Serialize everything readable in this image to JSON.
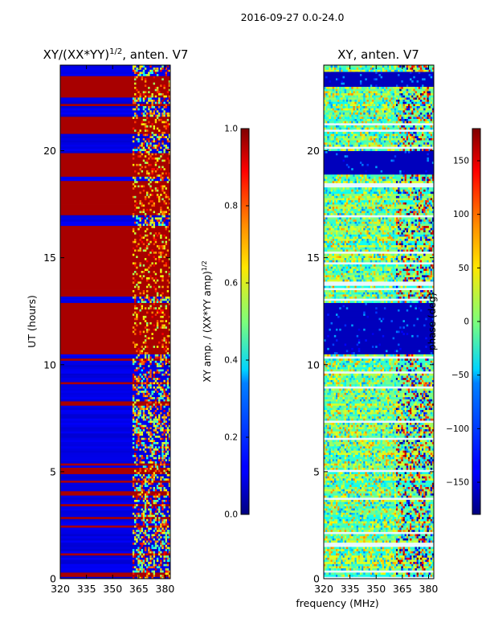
{
  "figure_title": "2016-09-27 0.0-24.0",
  "shared_xlabel": "frequency (MHz)",
  "chart_data": [
    {
      "type": "heatmap",
      "title_main": "XY/(XX*YY)",
      "title_sup": "1/2",
      "title_tail": ", anten. V7",
      "xlabel": "",
      "ylabel": "UT (hours)",
      "xlim": [
        320,
        383
      ],
      "ylim": [
        0,
        24
      ],
      "xticks": [
        320,
        335,
        350,
        365,
        380
      ],
      "yticks": [
        0,
        5,
        10,
        15,
        20
      ],
      "colorbar": {
        "label": "XY amp. / (XX*YY amp)",
        "label_sup": "1/2",
        "range": [
          0.0,
          1.0
        ],
        "ticks": [
          "0.0",
          "0.2",
          "0.4",
          "0.6",
          "0.8",
          "1.0"
        ],
        "colormap": "jet"
      },
      "saturated_bands_hours": [
        [
          0.1,
          0.35
        ],
        [
          10.5,
          12.9
        ],
        [
          13.2,
          16.5
        ],
        [
          17.0,
          18.6
        ],
        [
          18.8,
          19.9
        ],
        [
          20.8,
          21.6
        ],
        [
          22.5,
          23.5
        ]
      ],
      "sparse_bands_hours": [
        [
          0.4,
          10.4
        ],
        [
          19.9,
          20.8
        ],
        [
          23.5,
          24.0
        ]
      ],
      "rfi_channel_range_mhz": [
        362,
        383
      ]
    },
    {
      "type": "heatmap",
      "title_main": "XY, anten. V7",
      "xlabel": "",
      "ylabel": "",
      "xlim": [
        320,
        383
      ],
      "ylim": [
        0,
        24
      ],
      "xticks": [
        320,
        335,
        350,
        365,
        380
      ],
      "yticks": [
        0,
        5,
        10,
        15,
        20
      ],
      "colorbar": {
        "label": "phase (deg)",
        "range": [
          -180,
          180
        ],
        "ticks": [
          "−150",
          "−100",
          "−50",
          "0",
          "50",
          "100",
          "150"
        ],
        "colormap": "jet"
      },
      "low_phase_bands_hours": [
        [
          10.5,
          12.9
        ],
        [
          18.9,
          20.0
        ],
        [
          23.0,
          23.7
        ]
      ],
      "noisy_bands_hours": [
        [
          0.0,
          10.5
        ],
        [
          13.0,
          18.8
        ],
        [
          20.0,
          23.0
        ],
        [
          23.7,
          24.0
        ]
      ],
      "rfi_channel_range_mhz": [
        362,
        383
      ]
    }
  ]
}
